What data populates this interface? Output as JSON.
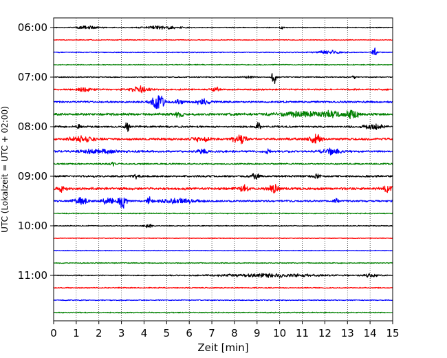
{
  "chart_data": {
    "type": "line",
    "subtype": "helicorder-seismogram",
    "xlabel": "Zeit  [min]",
    "ylabel": "UTC (Lokalzeit = UTC + 02:00)",
    "xlim": [
      0,
      15
    ],
    "x_ticks": [
      "0",
      "1",
      "2",
      "3",
      "4",
      "5",
      "6",
      "7",
      "8",
      "9",
      "10",
      "11",
      "12",
      "13",
      "14",
      "15"
    ],
    "y_ticks": [
      "06:00",
      "07:00",
      "08:00",
      "09:00",
      "10:00",
      "11:00"
    ],
    "grid": {
      "vertical": "dotted",
      "horizontal": false
    },
    "trace_colors": [
      "#000000",
      "#ff0000",
      "#0000ff",
      "#008000"
    ],
    "trace_start_times": [
      "06:00",
      "06:15",
      "06:30",
      "06:45",
      "07:00",
      "07:15",
      "07:30",
      "07:45",
      "08:00",
      "08:15",
      "08:30",
      "08:45",
      "09:00",
      "09:15",
      "09:30",
      "09:45",
      "10:00",
      "10:15",
      "10:30",
      "10:45",
      "11:00",
      "11:15",
      "11:30",
      "11:45"
    ],
    "series": [
      {
        "start": "06:00",
        "noise": 0.2,
        "events": [
          {
            "t": 1.5,
            "amp": 0.6,
            "width": 0.7
          },
          {
            "t": 4.8,
            "amp": 0.7,
            "width": 1.2
          },
          {
            "t": 10.1,
            "amp": 1.0,
            "width": 0.1
          }
        ]
      },
      {
        "start": "06:15",
        "noise": 0.18,
        "events": []
      },
      {
        "start": "06:30",
        "noise": 0.2,
        "events": [
          {
            "t": 12.2,
            "amp": 0.7,
            "width": 0.8
          },
          {
            "t": 14.2,
            "amp": 2.0,
            "width": 0.15
          }
        ]
      },
      {
        "start": "06:45",
        "noise": 0.22,
        "events": []
      },
      {
        "start": "07:00",
        "noise": 0.22,
        "events": [
          {
            "t": 8.6,
            "amp": 0.7,
            "width": 0.3
          },
          {
            "t": 9.75,
            "amp": 2.8,
            "width": 0.15
          },
          {
            "t": 13.3,
            "amp": 0.9,
            "width": 0.1
          }
        ]
      },
      {
        "start": "07:15",
        "noise": 0.35,
        "events": [
          {
            "t": 1.4,
            "amp": 0.9,
            "width": 0.4
          },
          {
            "t": 3.8,
            "amp": 1.6,
            "width": 0.5
          },
          {
            "t": 7.2,
            "amp": 0.8,
            "width": 0.3
          }
        ]
      },
      {
        "start": "07:30",
        "noise": 0.4,
        "events": [
          {
            "t": 4.6,
            "amp": 3.0,
            "width": 0.5
          },
          {
            "t": 5.6,
            "amp": 0.9,
            "width": 0.3
          },
          {
            "t": 6.6,
            "amp": 1.0,
            "width": 0.5
          }
        ]
      },
      {
        "start": "07:45",
        "noise": 0.55,
        "events": [
          {
            "t": 5.5,
            "amp": 1.0,
            "width": 0.3
          },
          {
            "t": 11.0,
            "amp": 0.9,
            "width": 1.5
          },
          {
            "t": 12.3,
            "amp": 1.5,
            "width": 0.5
          },
          {
            "t": 13.2,
            "amp": 2.0,
            "width": 0.4
          }
        ]
      },
      {
        "start": "08:00",
        "noise": 0.4,
        "events": [
          {
            "t": 1.1,
            "amp": 1.0,
            "width": 0.1
          },
          {
            "t": 3.25,
            "amp": 2.3,
            "width": 0.15
          },
          {
            "t": 9.05,
            "amp": 2.2,
            "width": 0.12
          },
          {
            "t": 14.2,
            "amp": 1.2,
            "width": 0.6
          }
        ]
      },
      {
        "start": "08:15",
        "noise": 0.5,
        "events": [
          {
            "t": 1.3,
            "amp": 1.2,
            "width": 0.8
          },
          {
            "t": 6.5,
            "amp": 1.0,
            "width": 0.6
          },
          {
            "t": 8.2,
            "amp": 2.6,
            "width": 0.4
          },
          {
            "t": 11.6,
            "amp": 1.8,
            "width": 0.4
          }
        ]
      },
      {
        "start": "08:30",
        "noise": 0.45,
        "events": [
          {
            "t": 2.0,
            "amp": 1.0,
            "width": 1.0
          },
          {
            "t": 6.6,
            "amp": 1.0,
            "width": 0.3
          },
          {
            "t": 9.5,
            "amp": 1.4,
            "width": 0.15
          },
          {
            "t": 12.3,
            "amp": 1.3,
            "width": 0.6
          }
        ]
      },
      {
        "start": "08:45",
        "noise": 0.32,
        "events": [
          {
            "t": 2.6,
            "amp": 1.0,
            "width": 0.15
          }
        ]
      },
      {
        "start": "09:00",
        "noise": 0.4,
        "events": [
          {
            "t": 3.7,
            "amp": 0.8,
            "width": 0.3
          },
          {
            "t": 8.9,
            "amp": 1.2,
            "width": 0.3
          },
          {
            "t": 11.6,
            "amp": 0.9,
            "width": 0.3
          }
        ]
      },
      {
        "start": "09:15",
        "noise": 0.55,
        "events": [
          {
            "t": 0.4,
            "amp": 1.2,
            "width": 0.3
          },
          {
            "t": 8.4,
            "amp": 1.5,
            "width": 0.3
          },
          {
            "t": 9.75,
            "amp": 1.7,
            "width": 0.3
          },
          {
            "t": 14.8,
            "amp": 1.3,
            "width": 0.3
          }
        ]
      },
      {
        "start": "09:30",
        "noise": 0.4,
        "events": [
          {
            "t": 1.2,
            "amp": 1.2,
            "width": 0.5
          },
          {
            "t": 2.4,
            "amp": 1.2,
            "width": 0.5
          },
          {
            "t": 3.05,
            "amp": 3.0,
            "width": 0.3
          },
          {
            "t": 4.25,
            "amp": 1.7,
            "width": 0.2
          },
          {
            "t": 5.5,
            "amp": 1.0,
            "width": 1.2
          },
          {
            "t": 12.5,
            "amp": 0.8,
            "width": 0.2
          }
        ]
      },
      {
        "start": "09:45",
        "noise": 0.22,
        "events": []
      },
      {
        "start": "10:00",
        "noise": 0.2,
        "events": [
          {
            "t": 4.2,
            "amp": 0.8,
            "width": 0.3
          }
        ]
      },
      {
        "start": "10:15",
        "noise": 0.14,
        "events": []
      },
      {
        "start": "10:30",
        "noise": 0.16,
        "events": []
      },
      {
        "start": "10:45",
        "noise": 0.2,
        "events": []
      },
      {
        "start": "11:00",
        "noise": 0.22,
        "events": [
          {
            "t": 9.5,
            "amp": 0.7,
            "width": 3.5
          },
          {
            "t": 14.0,
            "amp": 0.6,
            "width": 0.6
          }
        ]
      },
      {
        "start": "11:15",
        "noise": 0.22,
        "events": []
      },
      {
        "start": "11:30",
        "noise": 0.22,
        "events": []
      },
      {
        "start": "11:45",
        "noise": 0.24,
        "events": []
      }
    ]
  }
}
